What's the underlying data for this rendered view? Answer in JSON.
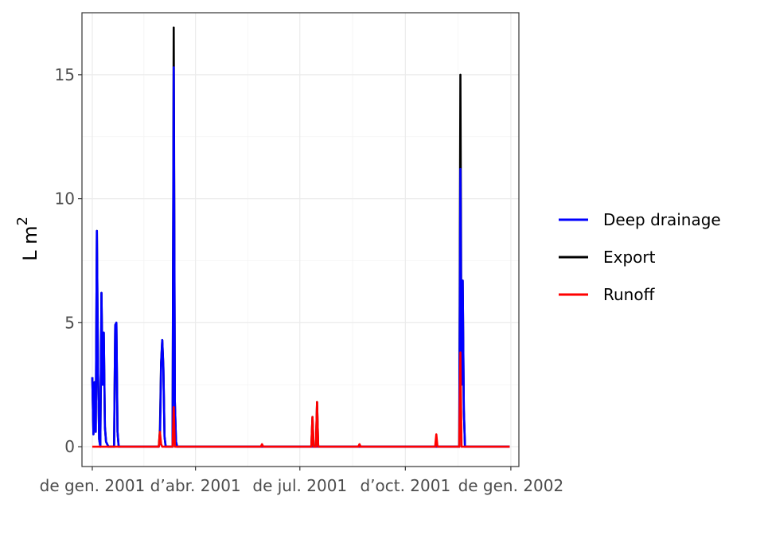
{
  "chart_data": {
    "type": "line",
    "ylabel": "L  m",
    "ylabel_superscript": "2",
    "ylim": [
      -0.8,
      17.5
    ],
    "yticks": [
      0,
      5,
      10,
      15
    ],
    "xlim": [
      "2000-12-23",
      "2002-01-08"
    ],
    "xticks": [
      {
        "date": "2001-01-01",
        "label": "de gen. 2001"
      },
      {
        "date": "2001-04-01",
        "label": "d’abr. 2001"
      },
      {
        "date": "2001-07-01",
        "label": "de jul. 2001"
      },
      {
        "date": "2001-10-01",
        "label": "d’oct. 2001"
      },
      {
        "date": "2002-01-01",
        "label": "de gen. 2002"
      }
    ],
    "grid": true,
    "legend_position": "right",
    "series": [
      {
        "name": "Export",
        "color": "#000000",
        "points": [
          [
            "2001-01-01",
            2.8
          ],
          [
            "2001-01-02",
            0.5
          ],
          [
            "2001-01-03",
            2.6
          ],
          [
            "2001-01-04",
            0.6
          ],
          [
            "2001-01-05",
            8.7
          ],
          [
            "2001-01-06",
            3.0
          ],
          [
            "2001-01-07",
            0.3
          ],
          [
            "2001-01-08",
            0.0
          ],
          [
            "2001-01-09",
            6.2
          ],
          [
            "2001-01-10",
            2.5
          ],
          [
            "2001-01-11",
            4.6
          ],
          [
            "2001-01-12",
            0.8
          ],
          [
            "2001-01-13",
            0.2
          ],
          [
            "2001-01-15",
            0.0
          ],
          [
            "2001-01-20",
            0.0
          ],
          [
            "2001-01-21",
            4.9
          ],
          [
            "2001-01-22",
            5.0
          ],
          [
            "2001-01-23",
            0.6
          ],
          [
            "2001-01-24",
            0.0
          ],
          [
            "2001-02-28",
            0.0
          ],
          [
            "2001-03-01",
            0.7
          ],
          [
            "2001-03-02",
            3.4
          ],
          [
            "2001-03-03",
            4.3
          ],
          [
            "2001-03-04",
            3.2
          ],
          [
            "2001-03-05",
            0.4
          ],
          [
            "2001-03-06",
            0.0
          ],
          [
            "2001-03-12",
            0.0
          ],
          [
            "2001-03-13",
            16.9
          ],
          [
            "2001-03-14",
            1.8
          ],
          [
            "2001-03-15",
            0.2
          ],
          [
            "2001-03-16",
            0.0
          ],
          [
            "2001-07-11",
            0.0
          ],
          [
            "2001-07-12",
            1.2
          ],
          [
            "2001-07-13",
            0.0
          ],
          [
            "2001-07-15",
            0.0
          ],
          [
            "2001-07-16",
            1.8
          ],
          [
            "2001-07-17",
            0.0
          ],
          [
            "2001-11-17",
            0.0
          ],
          [
            "2001-11-18",
            15.0
          ],
          [
            "2001-11-19",
            2.5
          ],
          [
            "2001-11-20",
            6.7
          ],
          [
            "2001-11-21",
            1.5
          ],
          [
            "2001-11-22",
            0.0
          ],
          [
            "2001-12-31",
            0.0
          ]
        ]
      },
      {
        "name": "Deep drainage",
        "color": "#0000ff",
        "points": [
          [
            "2001-01-01",
            2.8
          ],
          [
            "2001-01-02",
            0.5
          ],
          [
            "2001-01-03",
            2.6
          ],
          [
            "2001-01-04",
            0.6
          ],
          [
            "2001-01-05",
            8.7
          ],
          [
            "2001-01-06",
            3.0
          ],
          [
            "2001-01-07",
            0.3
          ],
          [
            "2001-01-08",
            0.0
          ],
          [
            "2001-01-09",
            6.2
          ],
          [
            "2001-01-10",
            2.5
          ],
          [
            "2001-01-11",
            4.6
          ],
          [
            "2001-01-12",
            0.8
          ],
          [
            "2001-01-13",
            0.2
          ],
          [
            "2001-01-15",
            0.0
          ],
          [
            "2001-01-20",
            0.0
          ],
          [
            "2001-01-21",
            4.9
          ],
          [
            "2001-01-22",
            5.0
          ],
          [
            "2001-01-23",
            0.6
          ],
          [
            "2001-01-24",
            0.0
          ],
          [
            "2001-02-28",
            0.0
          ],
          [
            "2001-03-01",
            0.2
          ],
          [
            "2001-03-02",
            3.3
          ],
          [
            "2001-03-03",
            4.3
          ],
          [
            "2001-03-04",
            3.1
          ],
          [
            "2001-03-05",
            0.4
          ],
          [
            "2001-03-06",
            0.0
          ],
          [
            "2001-03-12",
            0.0
          ],
          [
            "2001-03-13",
            15.3
          ],
          [
            "2001-03-14",
            1.8
          ],
          [
            "2001-03-15",
            0.2
          ],
          [
            "2001-03-16",
            0.0
          ],
          [
            "2001-11-17",
            0.0
          ],
          [
            "2001-11-18",
            11.2
          ],
          [
            "2001-11-19",
            2.5
          ],
          [
            "2001-11-20",
            6.7
          ],
          [
            "2001-11-21",
            1.5
          ],
          [
            "2001-11-22",
            0.0
          ],
          [
            "2001-12-31",
            0.0
          ]
        ]
      },
      {
        "name": "Runoff",
        "color": "#ff0000",
        "points": [
          [
            "2001-01-01",
            0.0
          ],
          [
            "2001-02-28",
            0.0
          ],
          [
            "2001-03-01",
            0.6
          ],
          [
            "2001-03-02",
            0.1
          ],
          [
            "2001-03-03",
            0.0
          ],
          [
            "2001-03-12",
            0.0
          ],
          [
            "2001-03-13",
            1.6
          ],
          [
            "2001-03-14",
            0.0
          ],
          [
            "2001-05-28",
            0.0
          ],
          [
            "2001-05-29",
            0.1
          ],
          [
            "2001-05-30",
            0.0
          ],
          [
            "2001-07-11",
            0.0
          ],
          [
            "2001-07-12",
            1.2
          ],
          [
            "2001-07-13",
            0.0
          ],
          [
            "2001-07-15",
            0.0
          ],
          [
            "2001-07-16",
            1.8
          ],
          [
            "2001-07-17",
            0.0
          ],
          [
            "2001-08-21",
            0.0
          ],
          [
            "2001-08-22",
            0.1
          ],
          [
            "2001-08-23",
            0.0
          ],
          [
            "2001-10-27",
            0.0
          ],
          [
            "2001-10-28",
            0.5
          ],
          [
            "2001-10-29",
            0.0
          ],
          [
            "2001-11-17",
            0.0
          ],
          [
            "2001-11-18",
            3.8
          ],
          [
            "2001-11-19",
            0.0
          ],
          [
            "2001-12-31",
            0.0
          ]
        ]
      }
    ],
    "legend": [
      "Deep drainage",
      "Export",
      "Runoff"
    ]
  }
}
